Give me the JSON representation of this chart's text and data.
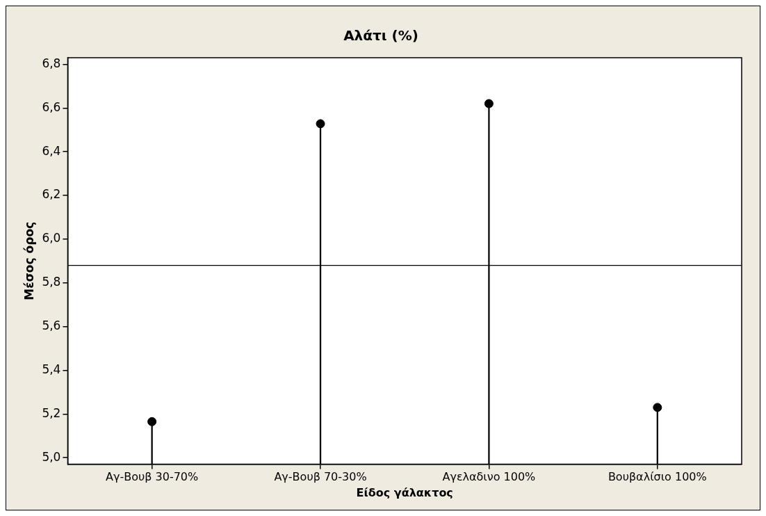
{
  "chart_data": {
    "type": "lollipop",
    "title": "Αλάτι (%)",
    "xlabel": "Είδος γάλακτος",
    "ylabel": "Μέσος όρος",
    "categories": [
      "Αγ-Βουβ 30-70%",
      "Αγ-Βουβ 70-30%",
      "Αγελαδινο 100%",
      "Βουβαλίσιο 100%"
    ],
    "values": [
      5.165,
      6.528,
      6.62,
      5.23
    ],
    "color": "#000000",
    "marker": "circle",
    "grid": false,
    "legend": false,
    "ylim": [
      4.97,
      6.83
    ],
    "yticks": [
      {
        "value": 5.0,
        "label": "5,0"
      },
      {
        "value": 5.2,
        "label": "5,2"
      },
      {
        "value": 5.4,
        "label": "5,4"
      },
      {
        "value": 5.6,
        "label": "5,6"
      },
      {
        "value": 5.8,
        "label": "5,8"
      },
      {
        "value": 6.0,
        "label": "6,0"
      },
      {
        "value": 6.2,
        "label": "6,2"
      },
      {
        "value": 6.4,
        "label": "6,4"
      },
      {
        "value": 6.6,
        "label": "6,6"
      },
      {
        "value": 6.8,
        "label": "6,8"
      }
    ],
    "ref_lines": [
      {
        "axis": "y",
        "value": 5.88,
        "color": "#000000"
      }
    ]
  }
}
